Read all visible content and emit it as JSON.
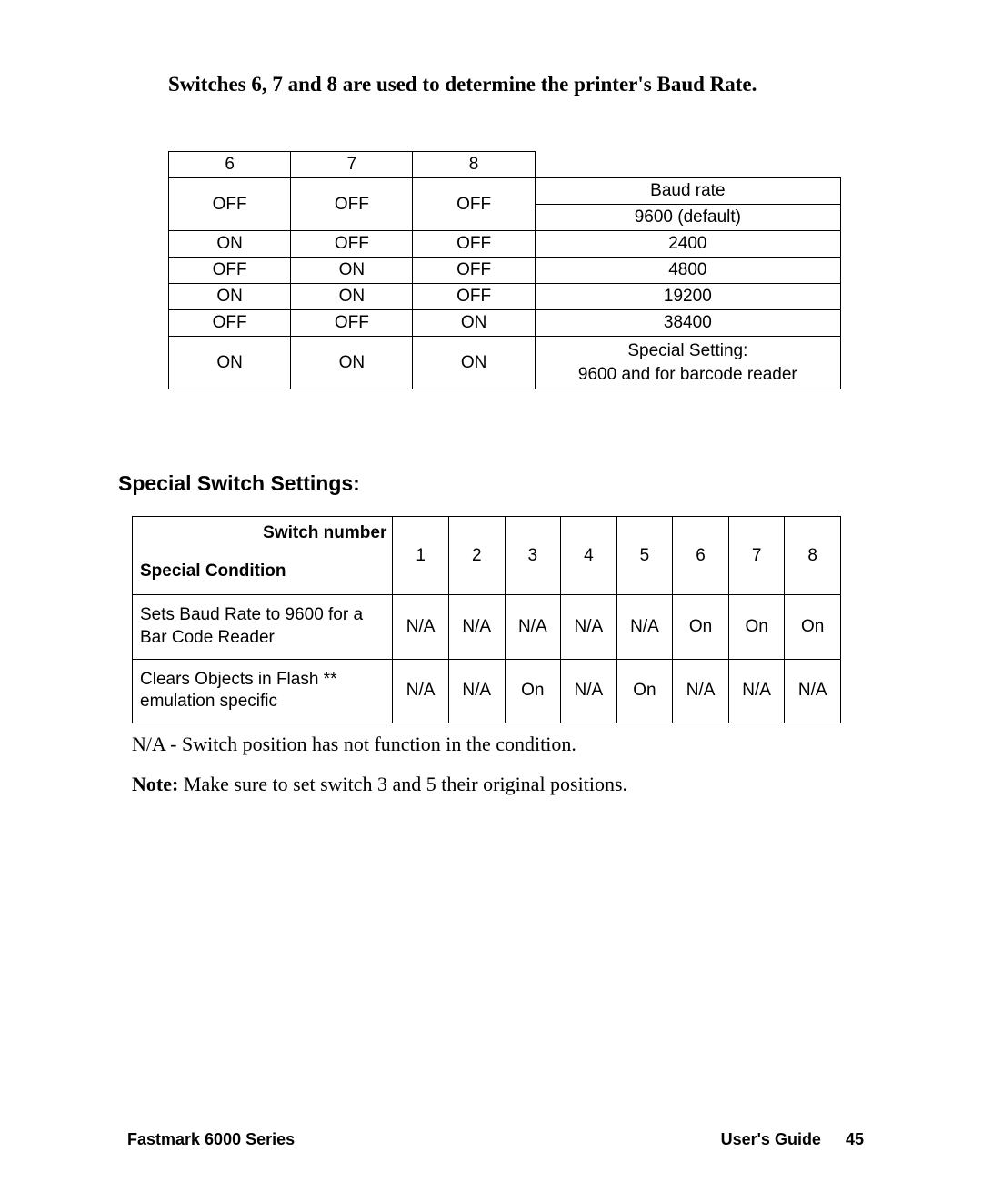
{
  "title": "Switches 6, 7 and 8 are used to determine the printer's Baud Rate.",
  "baud_table": {
    "headers": [
      "6",
      "7",
      "8"
    ],
    "rate_header": "Baud rate",
    "rows": [
      {
        "s6": "OFF",
        "s7": "OFF",
        "s8": "OFF",
        "rate": "9600 (default)"
      },
      {
        "s6": "ON",
        "s7": "OFF",
        "s8": "OFF",
        "rate": "2400"
      },
      {
        "s6": "OFF",
        "s7": "ON",
        "s8": "OFF",
        "rate": "4800"
      },
      {
        "s6": "ON",
        "s7": "ON",
        "s8": "OFF",
        "rate": "19200"
      },
      {
        "s6": "OFF",
        "s7": "OFF",
        "s8": "ON",
        "rate": "38400"
      },
      {
        "s6": "ON",
        "s7": "ON",
        "s8": "ON",
        "rate_line1": "Special Setting:",
        "rate_line2": "9600 and for barcode reader"
      }
    ]
  },
  "section_heading": "Special Switch Settings:",
  "special_table": {
    "switch_number_label": "Switch number",
    "special_condition_label": "Special Condition",
    "columns": [
      "1",
      "2",
      "3",
      "4",
      "5",
      "6",
      "7",
      "8"
    ],
    "rows": [
      {
        "desc": "Sets Baud Rate to 9600 for a Bar Code Reader",
        "vals": [
          "N/A",
          "N/A",
          "N/A",
          "N/A",
          "N/A",
          "On",
          "On",
          "On"
        ]
      },
      {
        "desc": "Clears Objects in Flash ** emulation specific",
        "vals": [
          "N/A",
          "N/A",
          "On",
          "N/A",
          "On",
          "N/A",
          "N/A",
          "N/A"
        ]
      }
    ]
  },
  "na_note": "N/A   - Switch position has not function in the condition.",
  "note_label": "Note:",
  "note_text": "  Make sure to set switch 3 and 5 their original positions.",
  "footer_left": "Fastmark 6000 Series",
  "footer_right_label": "User's Guide",
  "footer_page": "45"
}
